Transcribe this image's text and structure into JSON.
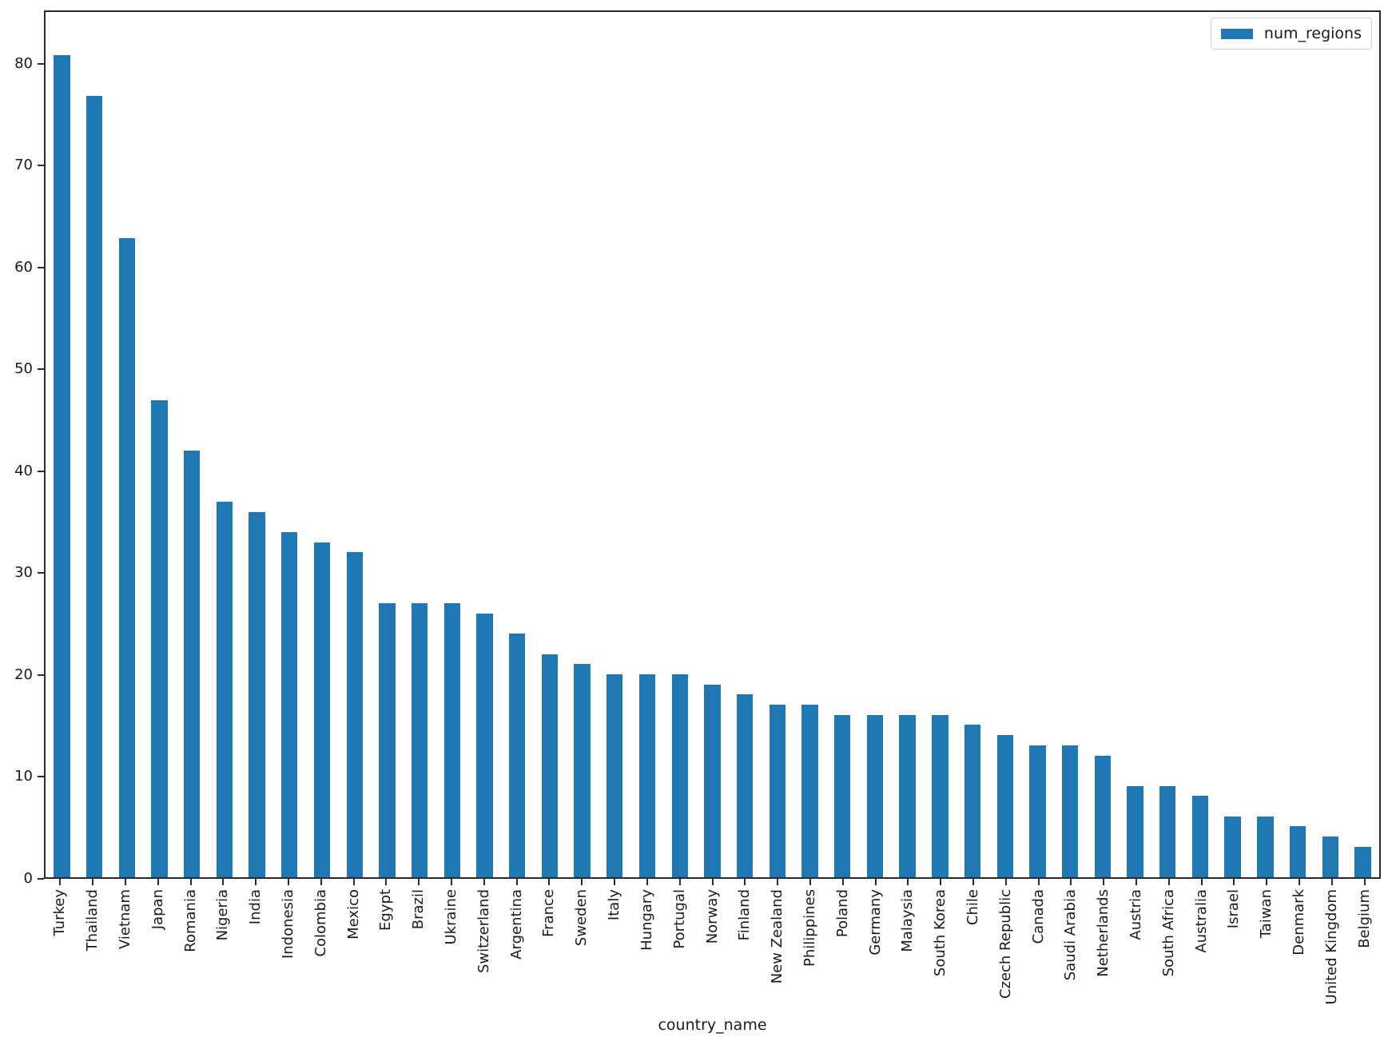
{
  "colors": {
    "bar": "#1f77b4",
    "axis": "#2b2b2b",
    "legend_border": "#cccccc",
    "background": "#ffffff"
  },
  "legend": {
    "label": "num_regions",
    "position": "upper right"
  },
  "chart_data": {
    "type": "bar",
    "title": "",
    "xlabel": "country_name",
    "ylabel": "",
    "grid": false,
    "legend_position": "upper right",
    "ylim": [
      0,
      85.25
    ],
    "yticks": [
      0,
      10,
      20,
      30,
      40,
      50,
      60,
      70,
      80
    ],
    "categories": [
      "Turkey",
      "Thailand",
      "Vietnam",
      "Japan",
      "Romania",
      "Nigeria",
      "India",
      "Indonesia",
      "Colombia",
      "Mexico",
      "Egypt",
      "Brazil",
      "Ukraine",
      "Switzerland",
      "Argentina",
      "France",
      "Sweden",
      "Italy",
      "Hungary",
      "Portugal",
      "Norway",
      "Finland",
      "New Zealand",
      "Philippines",
      "Poland",
      "Germany",
      "Malaysia",
      "South Korea",
      "Chile",
      "Czech Republic",
      "Canada",
      "Saudi Arabia",
      "Netherlands",
      "Austria",
      "South Africa",
      "Australia",
      "Israel",
      "Taiwan",
      "Denmark",
      "United Kingdom",
      "Belgium"
    ],
    "series": [
      {
        "name": "num_regions",
        "color": "#1f77b4",
        "values": [
          81,
          77,
          63,
          47,
          42,
          37,
          36,
          34,
          33,
          32,
          27,
          27,
          27,
          26,
          24,
          22,
          21,
          20,
          20,
          20,
          19,
          18,
          17,
          17,
          16,
          16,
          16,
          16,
          15,
          14,
          13,
          13,
          12,
          9,
          9,
          8,
          6,
          6,
          5,
          4,
          3
        ]
      }
    ]
  }
}
